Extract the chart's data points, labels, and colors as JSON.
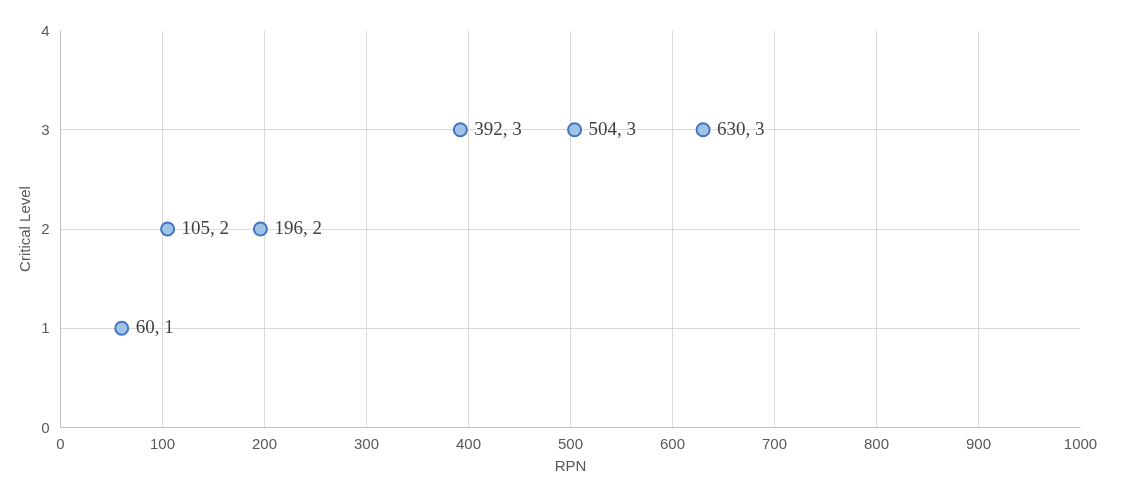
{
  "chart_data": {
    "type": "scatter",
    "xlabel": "RPN",
    "ylabel": "Critical Level",
    "x": [
      60,
      105,
      196,
      392,
      504,
      630
    ],
    "values": [
      1,
      2,
      2,
      3,
      3,
      3
    ],
    "value_labels": [
      "60, 1",
      "105, 2",
      "196, 2",
      "392, 3",
      "504, 3",
      "630, 3"
    ],
    "color": "#9dc3e6",
    "marker": "circle",
    "xlim": [
      0,
      1000
    ],
    "xticks": [
      0,
      100,
      200,
      300,
      400,
      500,
      600,
      700,
      800,
      900,
      1000
    ],
    "ylim": [
      0,
      4
    ],
    "yticks": [
      0,
      1,
      2,
      3,
      4
    ],
    "grid": true
  }
}
